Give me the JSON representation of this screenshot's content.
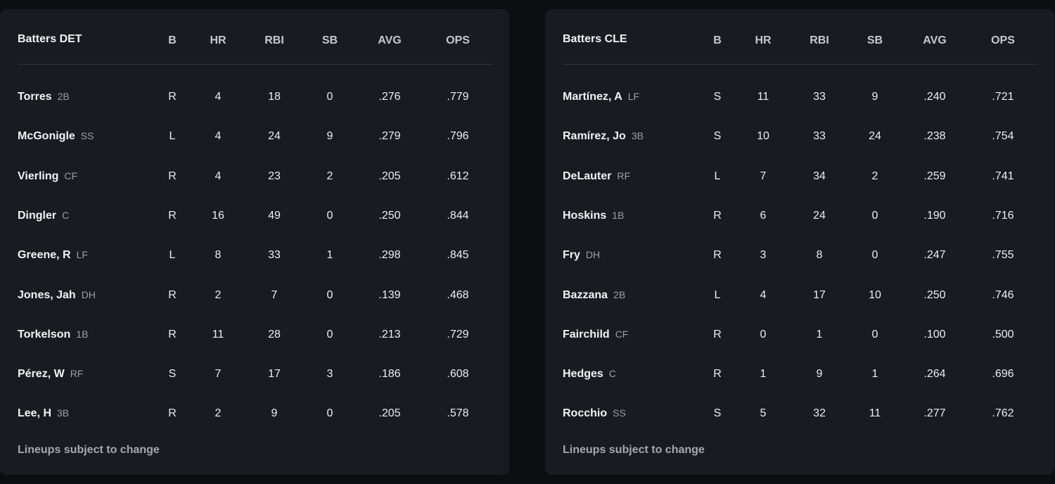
{
  "tables": [
    {
      "title": "Batters DET",
      "columns": [
        "B",
        "HR",
        "RBI",
        "SB",
        "AVG",
        "OPS"
      ],
      "rows": [
        {
          "name": "Torres",
          "pos": "2B",
          "cells": [
            "R",
            "4",
            "18",
            "0",
            ".276",
            ".779"
          ]
        },
        {
          "name": "McGonigle",
          "pos": "SS",
          "cells": [
            "L",
            "4",
            "24",
            "9",
            ".279",
            ".796"
          ]
        },
        {
          "name": "Vierling",
          "pos": "CF",
          "cells": [
            "R",
            "4",
            "23",
            "2",
            ".205",
            ".612"
          ]
        },
        {
          "name": "Dingler",
          "pos": "C",
          "cells": [
            "R",
            "16",
            "49",
            "0",
            ".250",
            ".844"
          ]
        },
        {
          "name": "Greene, R",
          "pos": "LF",
          "cells": [
            "L",
            "8",
            "33",
            "1",
            ".298",
            ".845"
          ]
        },
        {
          "name": "Jones, Jah",
          "pos": "DH",
          "cells": [
            "R",
            "2",
            "7",
            "0",
            ".139",
            ".468"
          ]
        },
        {
          "name": "Torkelson",
          "pos": "1B",
          "cells": [
            "R",
            "11",
            "28",
            "0",
            ".213",
            ".729"
          ]
        },
        {
          "name": "Pérez, W",
          "pos": "RF",
          "cells": [
            "S",
            "7",
            "17",
            "3",
            ".186",
            ".608"
          ]
        },
        {
          "name": "Lee, H",
          "pos": "3B",
          "cells": [
            "R",
            "2",
            "9",
            "0",
            ".205",
            ".578"
          ]
        }
      ],
      "footer": "Lineups subject to change"
    },
    {
      "title": "Batters CLE",
      "columns": [
        "B",
        "HR",
        "RBI",
        "SB",
        "AVG",
        "OPS"
      ],
      "rows": [
        {
          "name": "Martínez, A",
          "pos": "LF",
          "cells": [
            "S",
            "11",
            "33",
            "9",
            ".240",
            ".721"
          ]
        },
        {
          "name": "Ramírez, Jo",
          "pos": "3B",
          "cells": [
            "S",
            "10",
            "33",
            "24",
            ".238",
            ".754"
          ]
        },
        {
          "name": "DeLauter",
          "pos": "RF",
          "cells": [
            "L",
            "7",
            "34",
            "2",
            ".259",
            ".741"
          ]
        },
        {
          "name": "Hoskins",
          "pos": "1B",
          "cells": [
            "R",
            "6",
            "24",
            "0",
            ".190",
            ".716"
          ]
        },
        {
          "name": "Fry",
          "pos": "DH",
          "cells": [
            "R",
            "3",
            "8",
            "0",
            ".247",
            ".755"
          ]
        },
        {
          "name": "Bazzana",
          "pos": "2B",
          "cells": [
            "L",
            "4",
            "17",
            "10",
            ".250",
            ".746"
          ]
        },
        {
          "name": "Fairchild",
          "pos": "CF",
          "cells": [
            "R",
            "0",
            "1",
            "0",
            ".100",
            ".500"
          ]
        },
        {
          "name": "Hedges",
          "pos": "C",
          "cells": [
            "R",
            "1",
            "9",
            "1",
            ".264",
            ".696"
          ]
        },
        {
          "name": "Rocchio",
          "pos": "SS",
          "cells": [
            "S",
            "5",
            "32",
            "11",
            ".277",
            ".762"
          ]
        }
      ],
      "footer": "Lineups subject to change"
    }
  ]
}
